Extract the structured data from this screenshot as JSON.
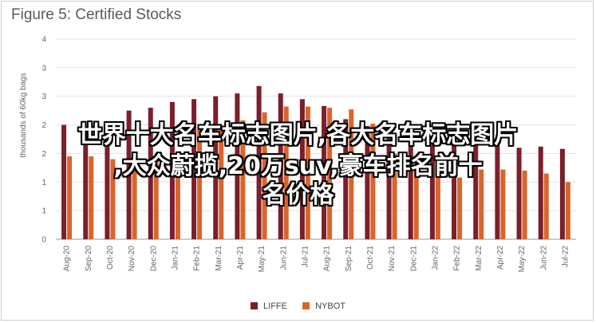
{
  "chart_data": {
    "type": "bar",
    "title": "Figure 5: Certified Stocks",
    "ylabel": "thousands of 60kg bags",
    "ylim": [
      0,
      3.5
    ],
    "ytick_values": [
      0,
      0.5,
      1,
      1.5,
      2,
      2.5,
      3,
      3.5
    ],
    "ytick_labels": [
      "0",
      "1",
      "1",
      "2",
      "2",
      "3",
      "3",
      "4"
    ],
    "categories": [
      "Aug-20",
      "Sep-20",
      "Oct-20",
      "Nov-20",
      "Dec-20",
      "Jan-21",
      "Feb-21",
      "Mar-21",
      "Apr-21",
      "May-21",
      "Jun-21",
      "Jul-21",
      "Aug-21",
      "Sep-21",
      "Oct-21",
      "Nov-21",
      "Dec-21",
      "Jan-22",
      "Feb-22",
      "Mar-22",
      "Apr-22",
      "May-22",
      "Jun-22",
      "Jul-22"
    ],
    "series": [
      {
        "name": "LIFFE",
        "color": "#7a1f2b",
        "values": [
          2.0,
          1.95,
          2.05,
          2.25,
          2.3,
          2.4,
          2.45,
          2.5,
          2.55,
          2.68,
          2.55,
          2.45,
          2.33,
          2.1,
          1.98,
          1.8,
          1.75,
          1.72,
          1.7,
          1.65,
          1.7,
          1.6,
          1.62,
          1.58
        ]
      },
      {
        "name": "NYBOT",
        "color": "#d9652b",
        "values": [
          1.45,
          1.45,
          1.4,
          1.4,
          1.45,
          1.5,
          1.92,
          1.98,
          2.08,
          2.22,
          2.32,
          2.32,
          2.3,
          2.27,
          2.02,
          1.5,
          1.3,
          1.15,
          1.08,
          1.22,
          1.22,
          1.2,
          1.15,
          1.0
        ]
      }
    ],
    "grid": true,
    "legend": "bottom"
  },
  "overlay": {
    "line1": "世界十大名车标志图片,各大名车标志图片",
    "line2": ",大众蔚揽,20万suv,豪车排名前十",
    "line3": "名价格"
  }
}
